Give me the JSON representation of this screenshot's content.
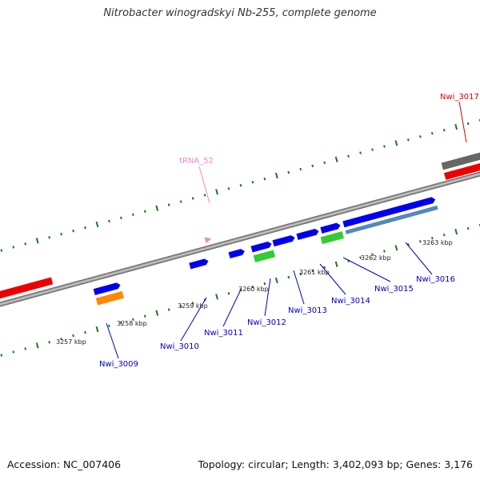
{
  "title": "Nitrobacter winogradskyi Nb-255, complete genome",
  "footer": {
    "accession": "Accession: NC_007406",
    "stats": "Topology: circular; Length: 3,402,093 bp; Genes: 3,176"
  },
  "colors": {
    "backbone": "#8a8a8a",
    "ticks": "#1a7a1a",
    "gene_blue": "#0000ee",
    "gene_red": "#ee0000",
    "gene_green": "#33cc33",
    "gene_orange": "#ff8800",
    "gene_gray": "#666666",
    "gene_pink": "#ee44aa",
    "trna_label": "#ee88cc",
    "gene_label": "#0000cc",
    "red_label": "#dd0000"
  },
  "ticks": {
    "labels": [
      "3257 kbp",
      "3258 kbp",
      "3259 kbp",
      "3260 kbp",
      "3261 kbp",
      "3262 kbp",
      "3263 kbp"
    ]
  },
  "labels": {
    "trna": "tRNA_52",
    "nwi_3009": "Nwi_3009",
    "nwi_3010": "Nwi_3010",
    "nwi_3011": "Nwi_3011",
    "nwi_3012": "Nwi_3012",
    "nwi_3013": "Nwi_3013",
    "nwi_3014": "Nwi_3014",
    "nwi_3015": "Nwi_3015",
    "nwi_3016": "Nwi_3016",
    "nwi_3017": "Nwi_3017"
  }
}
